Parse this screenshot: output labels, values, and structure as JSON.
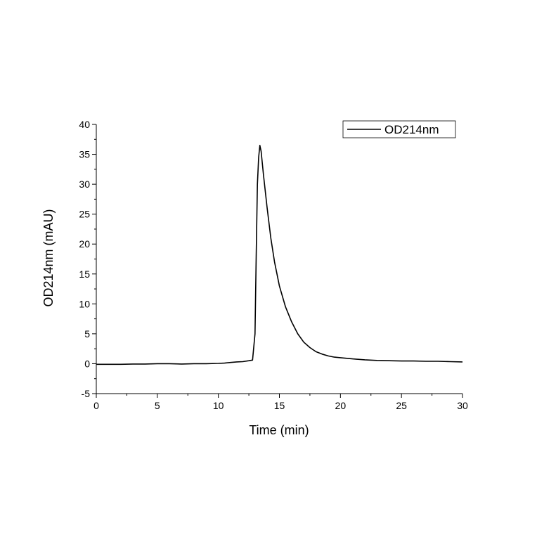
{
  "chart_data": {
    "type": "line",
    "xlabel": "Time (min)",
    "ylabel": "OD214nm (mAU)",
    "xlim": [
      0,
      30
    ],
    "ylim": [
      -5,
      40
    ],
    "x_ticks": [
      0,
      5,
      10,
      15,
      20,
      25,
      30
    ],
    "y_ticks": [
      -5,
      0,
      5,
      10,
      15,
      20,
      25,
      30,
      35,
      40
    ],
    "grid": false,
    "legend_position": "top-right",
    "line_color": "#000000",
    "series": [
      {
        "name": "OD214nm",
        "points": [
          [
            0,
            -0.1
          ],
          [
            1,
            -0.1
          ],
          [
            2,
            -0.1
          ],
          [
            3,
            -0.05
          ],
          [
            4,
            -0.05
          ],
          [
            5,
            0.0
          ],
          [
            6,
            0.0
          ],
          [
            7,
            -0.05
          ],
          [
            8,
            0.0
          ],
          [
            9,
            0.0
          ],
          [
            10,
            0.05
          ],
          [
            10.5,
            0.1
          ],
          [
            11,
            0.2
          ],
          [
            11.5,
            0.3
          ],
          [
            12,
            0.35
          ],
          [
            12.5,
            0.5
          ],
          [
            12.8,
            0.6
          ],
          [
            13.0,
            5.0
          ],
          [
            13.1,
            18.0
          ],
          [
            13.2,
            30.0
          ],
          [
            13.3,
            34.5
          ],
          [
            13.4,
            36.5
          ],
          [
            13.5,
            35.5
          ],
          [
            13.7,
            31.5
          ],
          [
            14.0,
            26.0
          ],
          [
            14.3,
            21.0
          ],
          [
            14.6,
            17.0
          ],
          [
            15.0,
            13.0
          ],
          [
            15.5,
            9.5
          ],
          [
            16.0,
            7.0
          ],
          [
            16.5,
            5.0
          ],
          [
            17.0,
            3.6
          ],
          [
            17.5,
            2.7
          ],
          [
            18.0,
            2.0
          ],
          [
            18.5,
            1.6
          ],
          [
            19.0,
            1.3
          ],
          [
            19.5,
            1.1
          ],
          [
            20.0,
            1.0
          ],
          [
            21.0,
            0.8
          ],
          [
            22.0,
            0.65
          ],
          [
            23.0,
            0.55
          ],
          [
            24.0,
            0.5
          ],
          [
            25.0,
            0.45
          ],
          [
            26.0,
            0.45
          ],
          [
            27.0,
            0.4
          ],
          [
            28.0,
            0.4
          ],
          [
            29.0,
            0.35
          ],
          [
            30.0,
            0.3
          ]
        ]
      }
    ]
  }
}
